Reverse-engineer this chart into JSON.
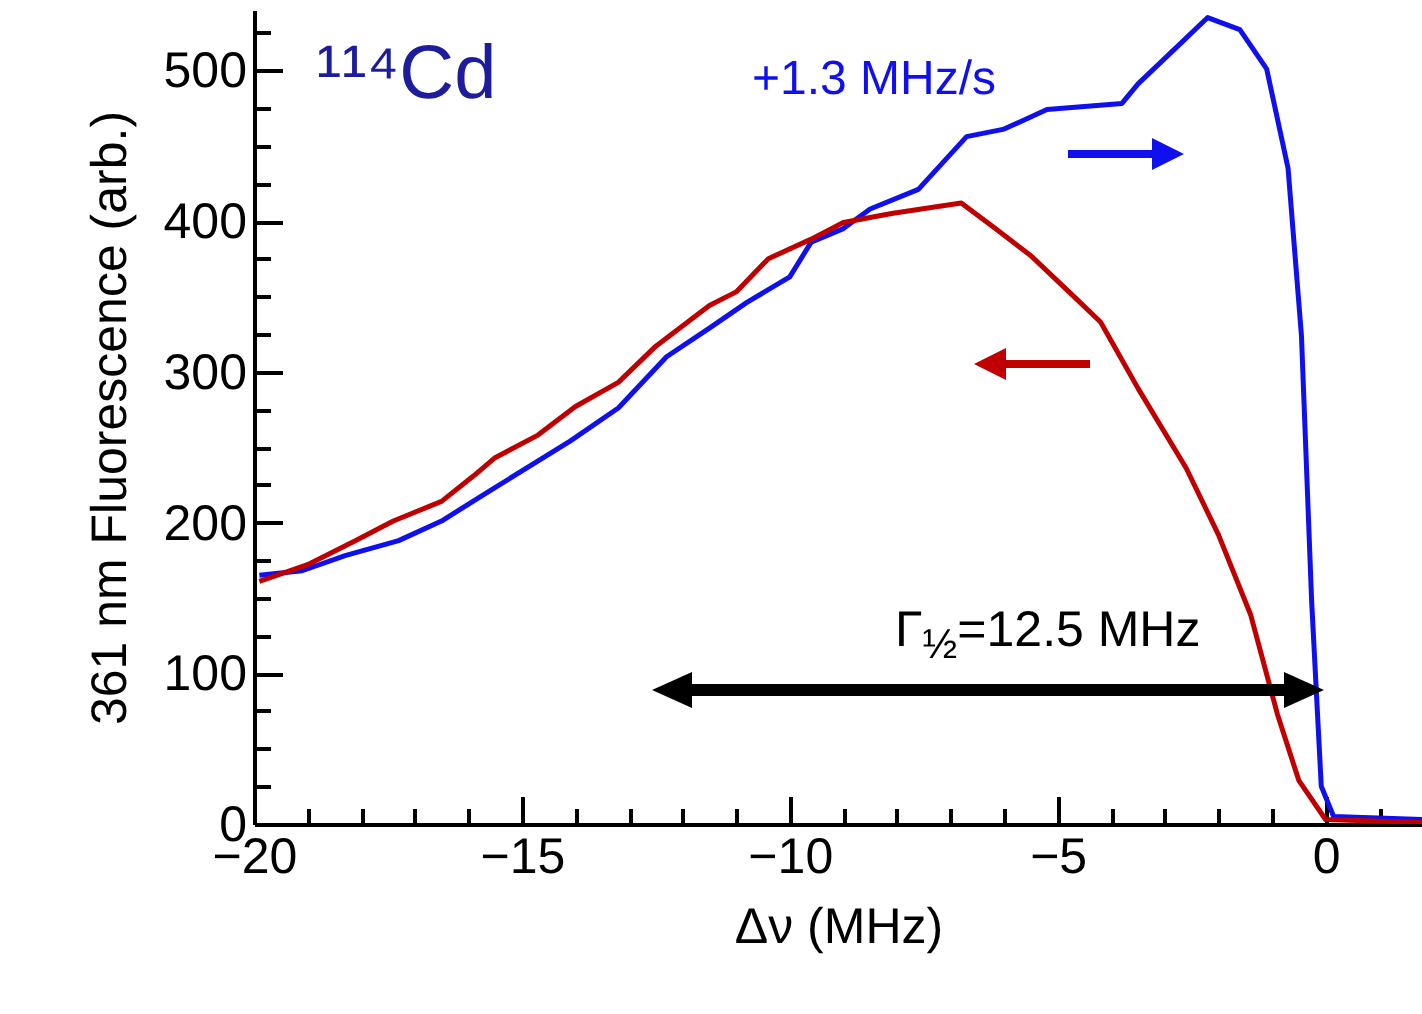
{
  "chart_data": {
    "type": "line",
    "xlabel": "Δν (MHz)",
    "ylabel": "361 nm Fluorescence (arb.)",
    "annotations": [
      "¹¹⁴Cd",
      "Γ$_{½}$=12.5 MHz"
    ],
    "xlim": [
      -20,
      1.8
    ],
    "ylim": [
      0,
      540
    ],
    "xticks": [
      {
        "value": -20,
        "label": "−20"
      },
      {
        "value": -19,
        "label": null
      },
      {
        "value": -18,
        "label": null
      },
      {
        "value": -17,
        "label": null
      },
      {
        "value": -16,
        "label": null
      },
      {
        "value": -15,
        "label": "−15"
      },
      {
        "value": -14,
        "label": null
      },
      {
        "value": -13,
        "label": null
      },
      {
        "value": -12,
        "label": null
      },
      {
        "value": -11,
        "label": null
      },
      {
        "value": -10,
        "label": "−10"
      },
      {
        "value": -9,
        "label": null
      },
      {
        "value": -8,
        "label": null
      },
      {
        "value": -7,
        "label": null
      },
      {
        "value": -6,
        "label": null
      },
      {
        "value": -5,
        "label": "−5"
      },
      {
        "value": -4,
        "label": null
      },
      {
        "value": -3,
        "label": null
      },
      {
        "value": -2,
        "label": null
      },
      {
        "value": -1,
        "label": null
      },
      0,
      {
        "value": 1,
        "label": null
      }
    ],
    "yticks": [
      0,
      {
        "value": 25,
        "label": null
      },
      {
        "value": 50,
        "label": null
      },
      {
        "value": 75,
        "label": null
      },
      100,
      {
        "value": 125,
        "label": null
      },
      {
        "value": 150,
        "label": null
      },
      {
        "value": 175,
        "label": null
      },
      200,
      {
        "value": 225,
        "label": null
      },
      {
        "value": 250,
        "label": null
      },
      {
        "value": 275,
        "label": null
      },
      300,
      {
        "value": 325,
        "label": null
      },
      {
        "value": 350,
        "label": null
      },
      {
        "value": 375,
        "label": null
      },
      400,
      {
        "value": 425,
        "label": null
      },
      {
        "value": 450,
        "label": null
      },
      {
        "value": 475,
        "label": null
      },
      500,
      {
        "value": 525,
        "label": null
      }
    ],
    "series": [
      {
        "name": "+1.3 MHz/s",
        "color": "#1010ee",
        "x": [
          -19.9,
          -19.1,
          -18.3,
          -17.3,
          -16.5,
          -15.6,
          -14.1,
          -13.2,
          -12.3,
          -11.5,
          -10.8,
          -10.0,
          -9.6,
          -9.0,
          -8.5,
          -7.6,
          -6.7,
          -6.0,
          -5.2,
          -3.8,
          -3.5,
          -2.7,
          -2.2,
          -1.6,
          -1.1,
          -0.7,
          -0.45,
          -0.26,
          -0.08,
          0.15,
          1.8
        ],
        "values": [
          165,
          168,
          178,
          188,
          201,
          221,
          254,
          276,
          310,
          329,
          346,
          363,
          386,
          395,
          408,
          421,
          456,
          461,
          474,
          478,
          491,
          518,
          535,
          527,
          501,
          435,
          324,
          148,
          25,
          5,
          3
        ]
      },
      {
        "color": "#c00000",
        "x": [
          -19.9,
          -19.0,
          -18.1,
          -17.4,
          -16.5,
          -15.9,
          -15.5,
          -14.7,
          -14.0,
          -13.2,
          -12.5,
          -11.5,
          -11.0,
          -10.4,
          -9.6,
          -9.0,
          -8.1,
          -6.8,
          -6.2,
          -5.5,
          -4.7,
          -4.2,
          -3.5,
          -2.6,
          -2.0,
          -1.4,
          -0.9,
          -0.5,
          0.0,
          1.8
        ],
        "values": [
          161,
          172,
          188,
          201,
          214,
          231,
          243,
          258,
          277,
          293,
          317,
          344,
          353,
          375,
          388,
          399,
          405,
          412,
          396,
          377,
          350,
          333,
          289,
          236,
          192,
          139,
          73,
          29,
          3,
          1
        ]
      }
    ]
  }
}
